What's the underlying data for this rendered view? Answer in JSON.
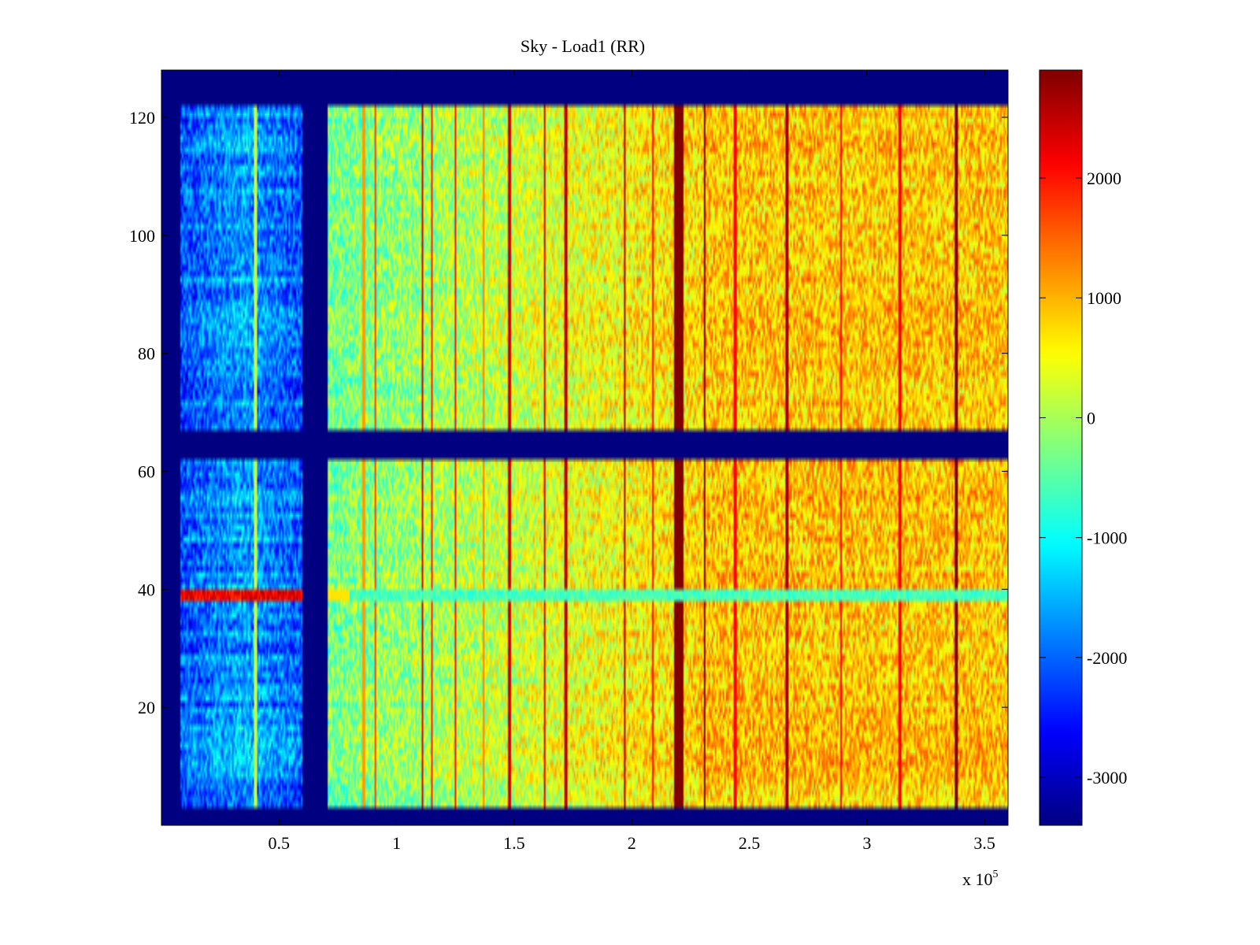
{
  "chart_data": {
    "type": "heatmap",
    "title": "Sky - Load1 (RR)",
    "xlabel": "",
    "ylabel": "",
    "x_exponent_label": "x 10",
    "x_exponent_power": "5",
    "xlim": [
      0,
      3.6
    ],
    "ylim": [
      0,
      128
    ],
    "x_ticks": [
      {
        "value": 0.5,
        "label": "0.5"
      },
      {
        "value": 1,
        "label": "1"
      },
      {
        "value": 1.5,
        "label": "1.5"
      },
      {
        "value": 2,
        "label": "2"
      },
      {
        "value": 2.5,
        "label": "2.5"
      },
      {
        "value": 3,
        "label": "3"
      },
      {
        "value": 3.5,
        "label": "3.5"
      }
    ],
    "y_ticks": [
      {
        "value": 20,
        "label": "20"
      },
      {
        "value": 40,
        "label": "40"
      },
      {
        "value": 60,
        "label": "60"
      },
      {
        "value": 80,
        "label": "80"
      },
      {
        "value": 100,
        "label": "100"
      },
      {
        "value": 120,
        "label": "120"
      }
    ],
    "colorbar": {
      "colormap": "jet",
      "range": [
        -3400,
        2900
      ],
      "ticks": [
        {
          "value": 2000,
          "label": "2000"
        },
        {
          "value": 1000,
          "label": "1000"
        },
        {
          "value": 0,
          "label": "0"
        },
        {
          "value": -1000,
          "label": "-1000"
        },
        {
          "value": -2000,
          "label": "-2000"
        },
        {
          "value": -3000,
          "label": "-3000"
        }
      ]
    },
    "blank_value": -3400,
    "data_x_ranges": [
      [
        0.08,
        0.6
      ],
      [
        0.71,
        3.6
      ]
    ],
    "data_y_ranges": [
      [
        3.5,
        67.5
      ],
      [
        68.5,
        121.5
      ]
    ],
    "blank_y_range": [
      61.5,
      67.5
    ],
    "rfi_lines_x": [
      0.4,
      0.86,
      0.91,
      1.11,
      1.15,
      1.25,
      1.37,
      1.48,
      1.63,
      1.72,
      1.97,
      2.09,
      2.31,
      2.44,
      2.66,
      2.89,
      3.14,
      3.38
    ],
    "strong_band_x": [
      2.18,
      2.22
    ],
    "bright_row_y": 39,
    "level_low_region": -1800,
    "level_high_region": 400
  }
}
